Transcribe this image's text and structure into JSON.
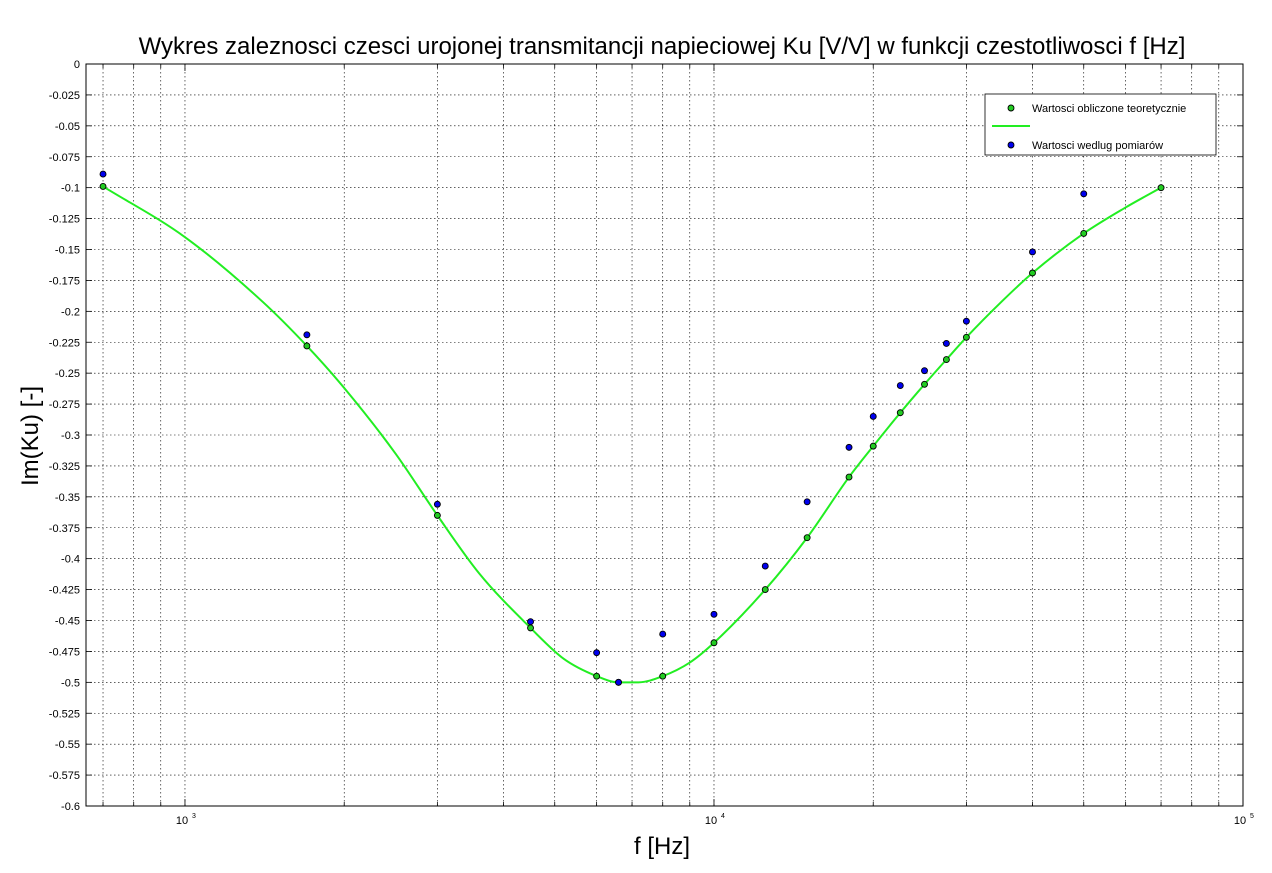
{
  "chart_data": {
    "type": "line",
    "title": "Wykres zaleznosci czesci urojonej transmitancji napieciowej Ku [V/V] w funkcji czestotliwosci f [Hz]",
    "xlabel": "f [Hz]",
    "ylabel": "Im(Ku) [-]",
    "xscale": "log",
    "xlim": [
      650,
      100000
    ],
    "ylim": [
      -0.6,
      0
    ],
    "grid": true,
    "legend_position": "top-right",
    "x_ticks": [
      {
        "base": "10",
        "exp": "3",
        "value": 1000
      },
      {
        "base": "10",
        "exp": "4",
        "value": 10000
      },
      {
        "base": "10",
        "exp": "5",
        "value": 100000
      }
    ],
    "y_ticks": [
      "0",
      "-0.025",
      "-0.05",
      "-0.075",
      "-0.1",
      "-0.125",
      "-0.15",
      "-0.175",
      "-0.2",
      "-0.225",
      "-0.25",
      "-0.275",
      "-0.3",
      "-0.325",
      "-0.35",
      "-0.375",
      "-0.4",
      "-0.425",
      "-0.45",
      "-0.475",
      "-0.5",
      "-0.525",
      "-0.55",
      "-0.575",
      "-0.6"
    ],
    "series": [
      {
        "name": "Wartosci obliczone teoretycznie",
        "style": "markers",
        "color": "#22cc22",
        "x": [
          700,
          1700,
          3000,
          4500,
          6000,
          6600,
          8000,
          10000,
          12500,
          15000,
          18000,
          20000,
          22500,
          25000,
          27500,
          30000,
          40000,
          50000,
          70000
        ],
        "y": [
          -0.099,
          -0.228,
          -0.365,
          -0.456,
          -0.495,
          -0.5,
          -0.495,
          -0.468,
          -0.425,
          -0.383,
          -0.334,
          -0.309,
          -0.282,
          -0.259,
          -0.239,
          -0.221,
          -0.169,
          -0.137,
          -0.1
        ]
      },
      {
        "name": "",
        "style": "line",
        "color": "#22ee22",
        "x": [
          700,
          1000,
          1400,
          1700,
          2000,
          2500,
          3000,
          3600,
          4500,
          5200,
          6000,
          6600,
          7200,
          8000,
          9000,
          10000,
          12500,
          15000,
          18000,
          20000,
          22500,
          25000,
          27500,
          30000,
          35000,
          40000,
          50000,
          60000,
          70000
        ],
        "y": [
          -0.099,
          -0.14,
          -0.192,
          -0.228,
          -0.262,
          -0.315,
          -0.365,
          -0.412,
          -0.456,
          -0.481,
          -0.495,
          -0.5,
          -0.5,
          -0.495,
          -0.484,
          -0.468,
          -0.425,
          -0.383,
          -0.334,
          -0.309,
          -0.282,
          -0.259,
          -0.239,
          -0.221,
          -0.192,
          -0.169,
          -0.137,
          -0.116,
          -0.1
        ]
      },
      {
        "name": "Wartosci wedlug pomiarów",
        "style": "markers",
        "color": "#0000ee",
        "x": [
          700,
          1700,
          3000,
          4500,
          6000,
          6600,
          8000,
          10000,
          12500,
          15000,
          18000,
          20000,
          22500,
          25000,
          27500,
          30000,
          40000,
          50000
        ],
        "y": [
          -0.089,
          -0.219,
          -0.356,
          -0.451,
          -0.476,
          -0.5,
          -0.461,
          -0.445,
          -0.406,
          -0.354,
          -0.31,
          -0.285,
          -0.26,
          -0.248,
          -0.226,
          -0.208,
          -0.152,
          -0.105
        ]
      }
    ]
  }
}
